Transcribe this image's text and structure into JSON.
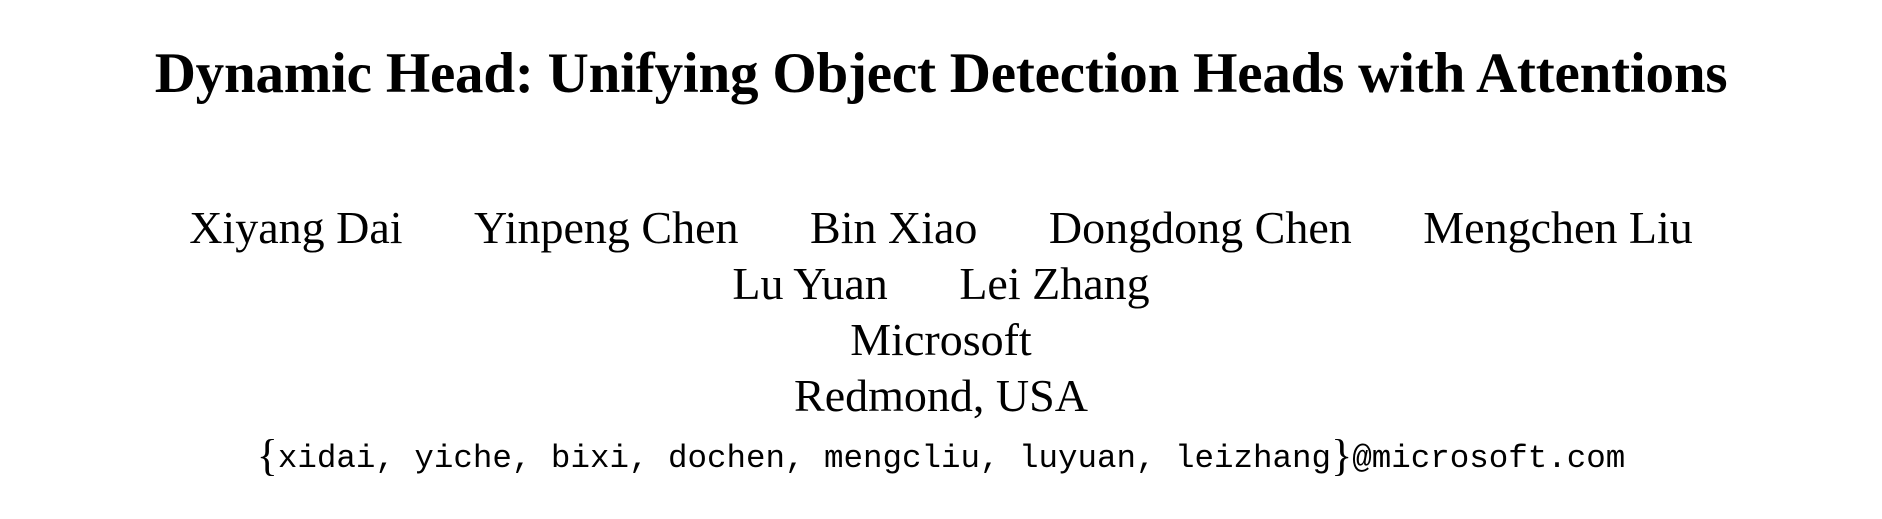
{
  "paper": {
    "title": "Dynamic Head: Unifying Object Detection Heads with Attentions",
    "authors_line1": [
      "Xiyang Dai",
      "Yinpeng Chen",
      "Bin Xiao",
      "Dongdong Chen",
      "Mengchen Liu"
    ],
    "authors_line2": [
      "Lu Yuan",
      "Lei Zhang"
    ],
    "affiliation": "Microsoft",
    "location": "Redmond, USA",
    "email": {
      "open_brace": "{",
      "handles": "xidai, yiche, bixi, dochen, mengcliu, luyuan, leizhang",
      "close_brace": "}",
      "domain": "@microsoft.com"
    }
  }
}
